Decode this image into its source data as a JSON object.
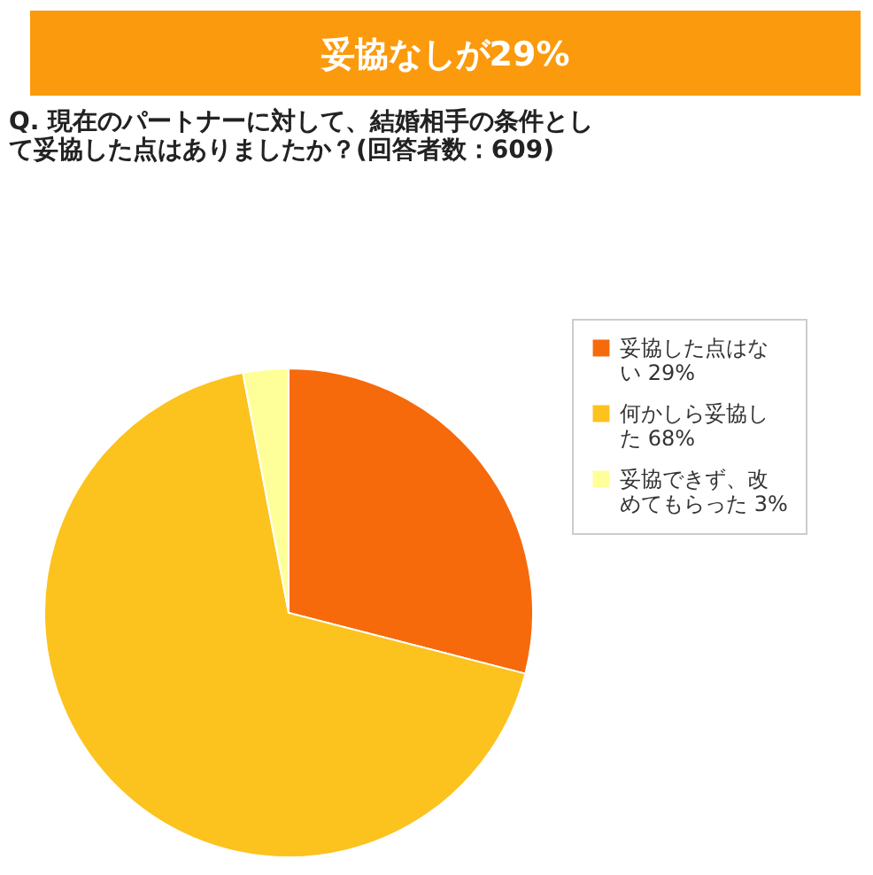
{
  "chart_data": {
    "type": "pie",
    "title": "妥協なしが29%",
    "subtitle": "Q. 現在のパートナーに対して、結婚相手の条件として妥協した点はありましたか？(回答者数：609)",
    "categories": [
      "妥協した点はない 29%",
      "何かしら妥協した 68%",
      "妥協できず、改めてもらった 3%"
    ],
    "values": [
      29,
      68,
      3
    ],
    "colors": [
      "#f66a0c",
      "#fcc21e",
      "#ffff9a"
    ],
    "legend": "top right"
  }
}
